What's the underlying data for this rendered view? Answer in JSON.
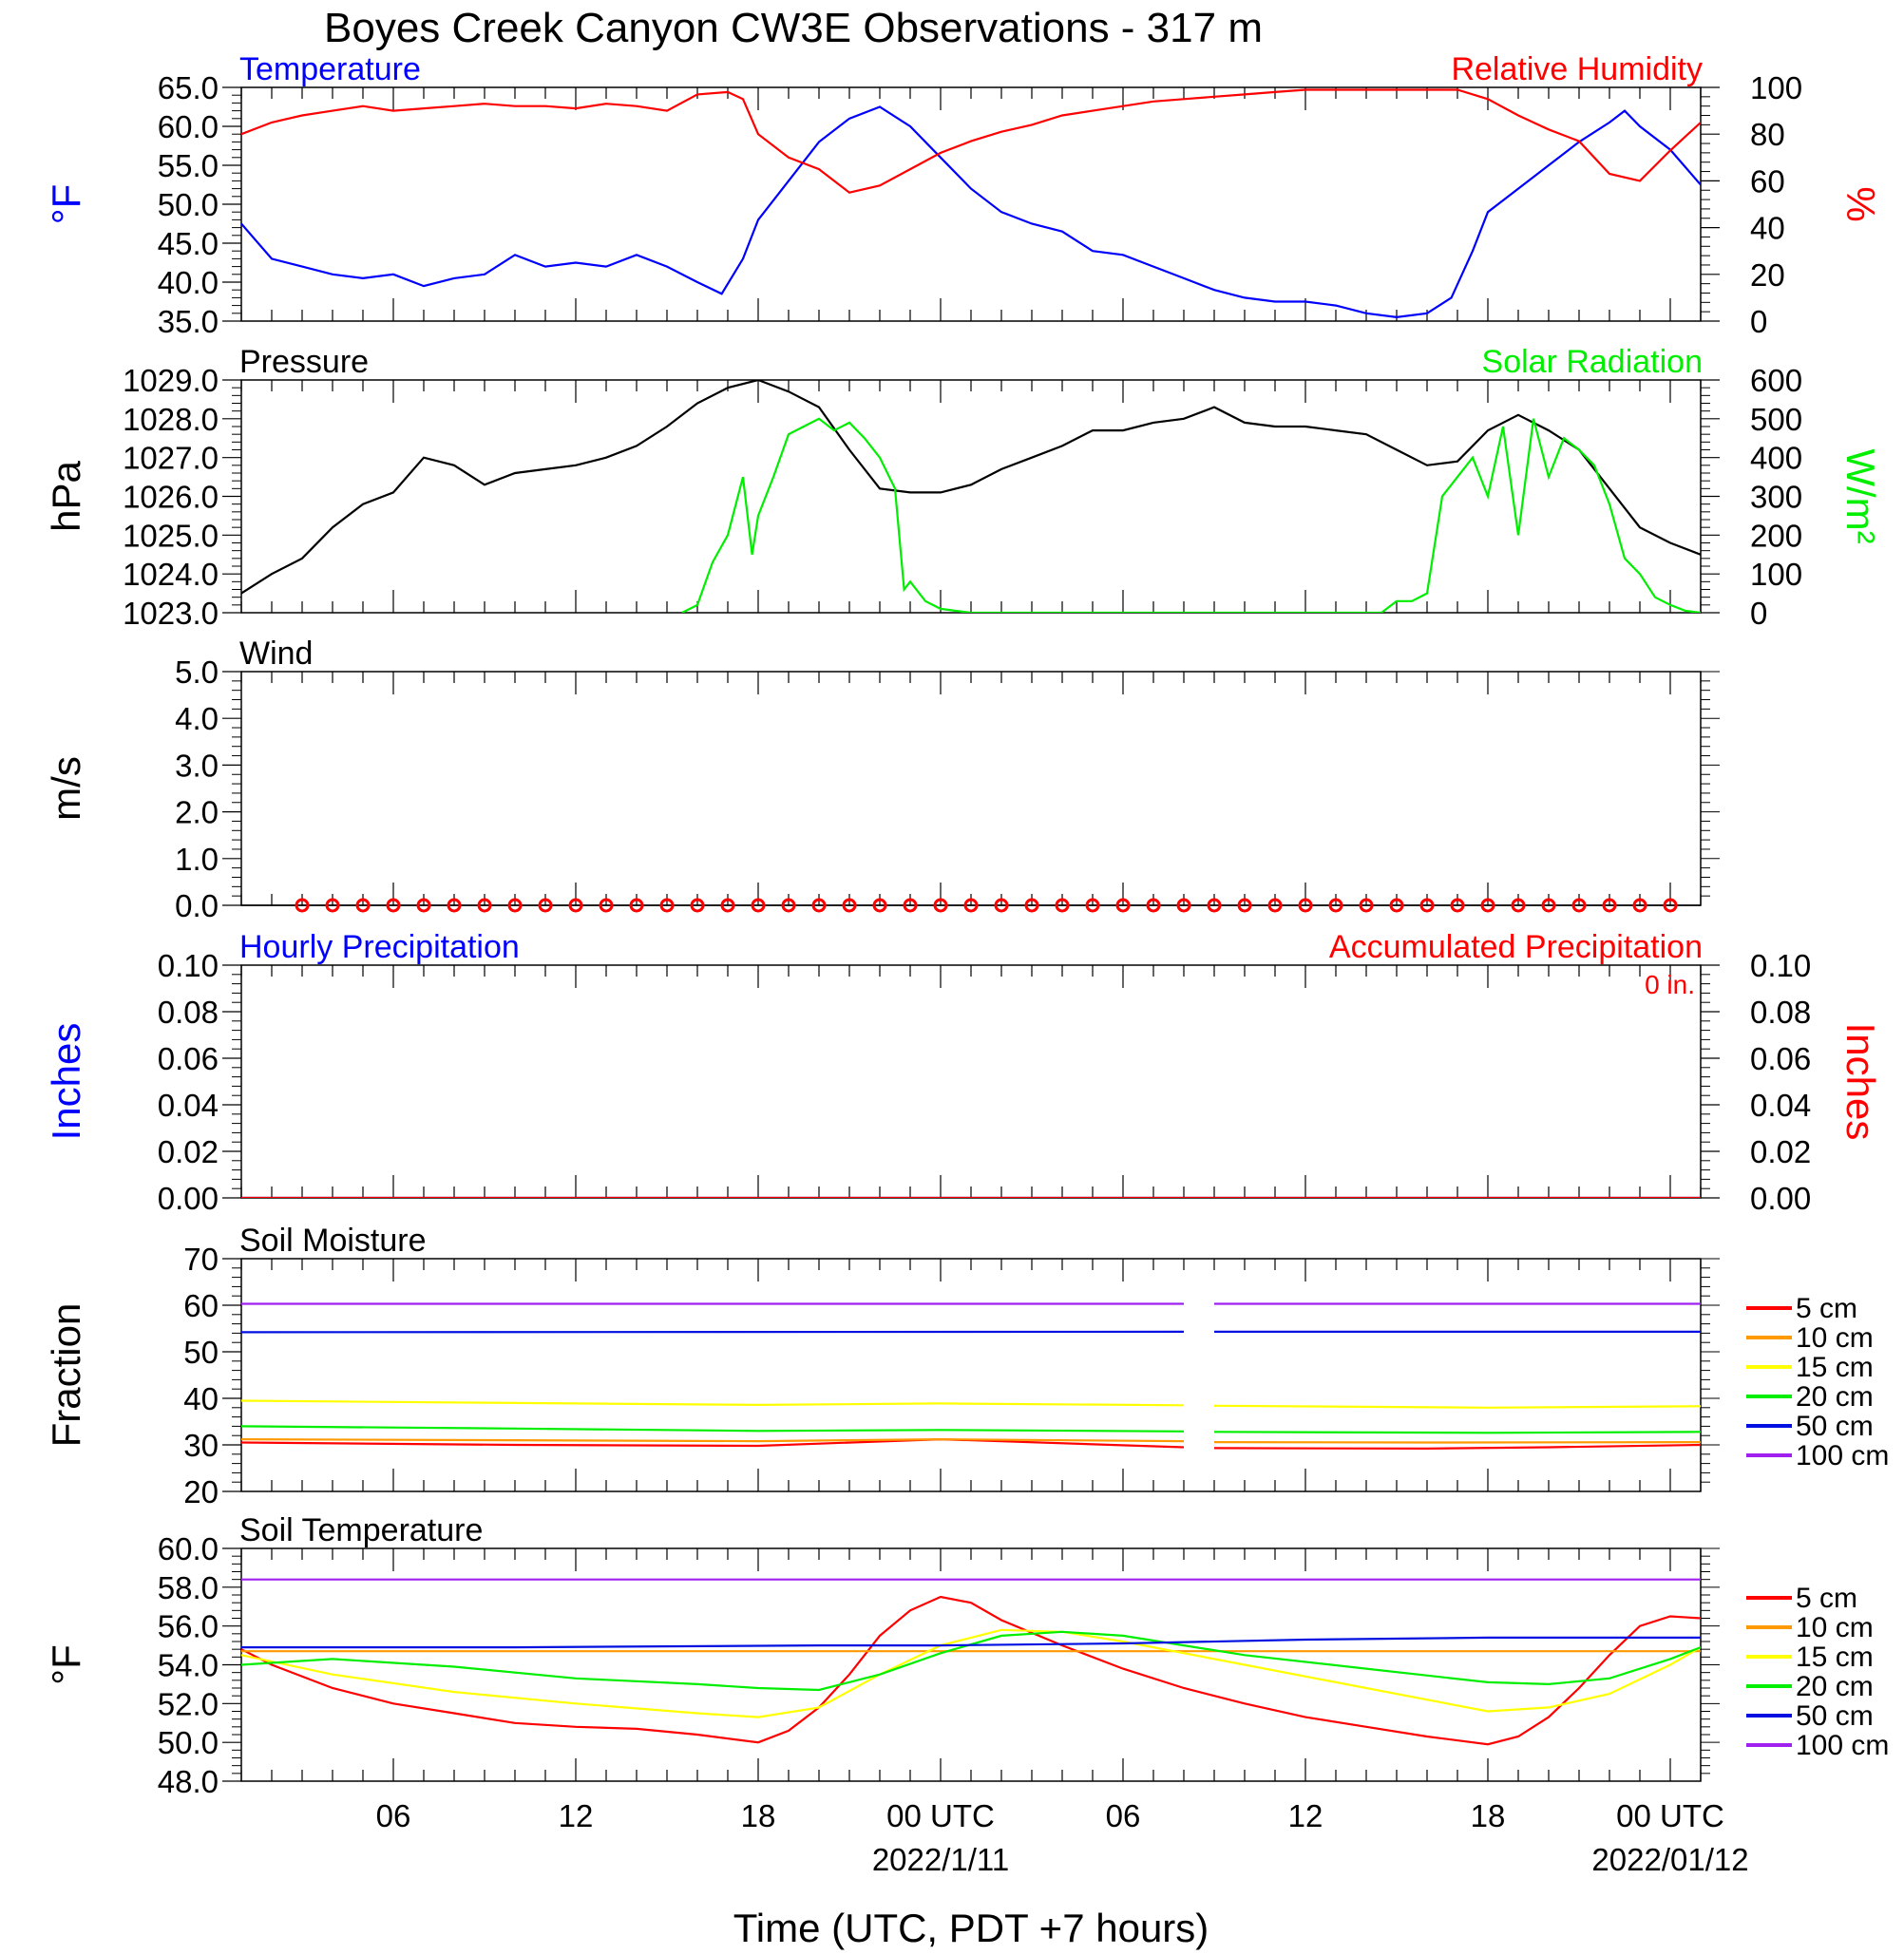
{
  "title": "Boyes Creek Canyon CW3E Observations - 317 m",
  "xaxis": {
    "label": "Time (UTC, PDT +7 hours)",
    "ticks": [
      {
        "hour": 6,
        "label": "06",
        "date": ""
      },
      {
        "hour": 12,
        "label": "12",
        "date": ""
      },
      {
        "hour": 18,
        "label": "18",
        "date": ""
      },
      {
        "hour": 24,
        "label": "00 UTC",
        "date": "2022/1/11"
      },
      {
        "hour": 30,
        "label": "06",
        "date": ""
      },
      {
        "hour": 36,
        "label": "12",
        "date": ""
      },
      {
        "hour": 42,
        "label": "18",
        "date": ""
      },
      {
        "hour": 48,
        "label": "00 UTC",
        "date": "2022/01/12"
      }
    ]
  },
  "colors": {
    "blue": "#0000ff",
    "red": "#ff0000",
    "green": "#00ee00",
    "black": "#000000",
    "orange": "#ff9900",
    "yellow": "#ffff00",
    "navy": "#0010e0",
    "purple": "#a020f0"
  },
  "panels": {
    "temp_rh": {
      "left_title": "Temperature",
      "right_title": "Relative Humidity",
      "left_ylabel": "°F",
      "right_ylabel": "%",
      "left_ticks": [
        "65.0",
        "60.0",
        "55.0",
        "50.0",
        "45.0",
        "40.0",
        "35.0"
      ],
      "right_ticks": [
        "100",
        "80",
        "60",
        "40",
        "20",
        "0"
      ]
    },
    "pressure_solar": {
      "left_title": "Pressure",
      "right_title": "Solar Radiation",
      "left_ylabel": "hPa",
      "right_ylabel": "W/m²",
      "left_ticks": [
        "1029.0",
        "1028.0",
        "1027.0",
        "1026.0",
        "1025.0",
        "1024.0",
        "1023.0"
      ],
      "right_ticks": [
        "600",
        "500",
        "400",
        "300",
        "200",
        "100",
        "0"
      ]
    },
    "wind": {
      "left_title": "Wind",
      "left_ylabel": "m/s",
      "left_ticks": [
        "5.0",
        "4.0",
        "3.0",
        "2.0",
        "1.0",
        "0.0"
      ]
    },
    "precip": {
      "left_title": "Hourly Precipitation",
      "right_title": "Accumulated Precipitation",
      "left_ylabel": "Inches",
      "right_ylabel": "Inches",
      "accum_label": "0 in.",
      "left_ticks": [
        "0.10",
        "0.08",
        "0.06",
        "0.04",
        "0.02",
        "0.00"
      ],
      "right_ticks": [
        "0.10",
        "0.08",
        "0.06",
        "0.04",
        "0.02",
        "0.00"
      ]
    },
    "soil_moisture": {
      "left_title": "Soil Moisture",
      "left_ylabel": "Fraction",
      "left_ticks": [
        "70",
        "60",
        "50",
        "40",
        "30",
        "20"
      ],
      "legend": [
        "5 cm",
        "10 cm",
        "15 cm",
        "20 cm",
        "50 cm",
        "100 cm"
      ]
    },
    "soil_temp": {
      "left_title": "Soil Temperature",
      "left_ylabel": "°F",
      "left_ticks": [
        "60.0",
        "58.0",
        "56.0",
        "54.0",
        "52.0",
        "50.0",
        "48.0"
      ],
      "legend": [
        "5 cm",
        "10 cm",
        "15 cm",
        "20 cm",
        "50 cm",
        "100 cm"
      ]
    }
  },
  "chart_data": [
    {
      "type": "line",
      "title": "Temperature / Relative Humidity",
      "xlim": [
        1,
        49
      ],
      "ylim": [
        35,
        65
      ],
      "y2lim": [
        0,
        100
      ],
      "series": [
        {
          "name": "Temperature",
          "axis": "left",
          "color": "#0000ff",
          "x": [
            1,
            2,
            3,
            4,
            5,
            6,
            7,
            8,
            9,
            10,
            11,
            12,
            13,
            14,
            15,
            16,
            16.8,
            17.5,
            18,
            19,
            20,
            21,
            22,
            23,
            24,
            25,
            26,
            27,
            28,
            29,
            30,
            31,
            32,
            33,
            34,
            35,
            36,
            37,
            38,
            39,
            40,
            40.8,
            41.5,
            42,
            43,
            44,
            45,
            46,
            46.5,
            47,
            48,
            49
          ],
          "y": [
            47.5,
            43,
            42,
            41,
            40.5,
            41,
            39.5,
            40.5,
            41,
            43.5,
            42,
            42.5,
            42,
            43.5,
            42,
            40,
            38.5,
            43,
            48,
            53,
            58,
            61,
            62.5,
            60,
            56,
            52,
            49,
            47.5,
            46.5,
            44,
            43.5,
            42,
            40.5,
            39,
            38,
            37.5,
            37.5,
            37,
            36,
            35.5,
            36,
            38,
            44,
            49,
            52,
            55,
            58,
            60.5,
            62,
            60,
            57,
            52.5
          ]
        },
        {
          "name": "Relative Humidity",
          "axis": "right",
          "color": "#ff0000",
          "x": [
            1,
            2,
            3,
            4,
            5,
            6,
            7,
            8,
            9,
            10,
            11,
            12,
            13,
            14,
            15,
            16,
            17,
            17.5,
            18,
            19,
            20,
            21,
            22,
            23,
            24,
            25,
            26,
            27,
            28,
            29,
            30,
            31,
            32,
            33,
            34,
            35,
            36,
            37,
            38,
            39,
            40,
            41,
            42,
            43,
            44,
            45,
            46,
            47,
            48,
            49
          ],
          "y": [
            80,
            85,
            88,
            90,
            92,
            90,
            91,
            92,
            93,
            92,
            92,
            91,
            93,
            92,
            90,
            97,
            98,
            95,
            80,
            70,
            65,
            55,
            58,
            65,
            72,
            77,
            81,
            84,
            88,
            90,
            92,
            94,
            95,
            96,
            97,
            98,
            99,
            99,
            99,
            99,
            99,
            99,
            95,
            88,
            82,
            77,
            63,
            60,
            73,
            85
          ]
        }
      ]
    },
    {
      "type": "line",
      "title": "Pressure / Solar Radiation",
      "xlim": [
        1,
        49
      ],
      "ylim": [
        1023,
        1029
      ],
      "y2lim": [
        0,
        600
      ],
      "series": [
        {
          "name": "Pressure",
          "axis": "left",
          "color": "#000000",
          "x": [
            1,
            2,
            3,
            4,
            5,
            6,
            7,
            8,
            9,
            10,
            11,
            12,
            13,
            14,
            15,
            16,
            17,
            18,
            19,
            20,
            21,
            22,
            23,
            24,
            25,
            26,
            27,
            28,
            29,
            30,
            31,
            32,
            33,
            34,
            35,
            36,
            37,
            38,
            39,
            40,
            41,
            42,
            43,
            44,
            45,
            46,
            47,
            48,
            49
          ],
          "y": [
            1023.5,
            1024,
            1024.4,
            1025.2,
            1025.8,
            1026.1,
            1027,
            1026.8,
            1026.3,
            1026.6,
            1026.7,
            1026.8,
            1027,
            1027.3,
            1027.8,
            1028.4,
            1028.8,
            1029,
            1028.7,
            1028.3,
            1027.2,
            1026.2,
            1026.1,
            1026.1,
            1026.3,
            1026.7,
            1027,
            1027.3,
            1027.7,
            1027.7,
            1027.9,
            1028,
            1028.3,
            1027.9,
            1027.8,
            1027.8,
            1027.7,
            1027.6,
            1027.2,
            1026.8,
            1026.9,
            1027.7,
            1028.1,
            1027.7,
            1027.2,
            1026.2,
            1025.2,
            1024.8,
            1024.5
          ]
        },
        {
          "name": "Solar Radiation",
          "axis": "right",
          "color": "#00ee00",
          "x": [
            15.5,
            16,
            16.5,
            17,
            17.5,
            17.8,
            18,
            18.5,
            19,
            19.5,
            20,
            20.5,
            21,
            21.5,
            22,
            22.5,
            22.8,
            23,
            23.5,
            24,
            24.5,
            25,
            25.5,
            38.5,
            39,
            39.5,
            40,
            40.5,
            41,
            41.5,
            42,
            42.5,
            43,
            43.5,
            44,
            44.5,
            45,
            45.5,
            46,
            46.5,
            47,
            47.5,
            48,
            48.5,
            49
          ],
          "y": [
            0,
            20,
            130,
            200,
            350,
            150,
            250,
            350,
            460,
            480,
            500,
            470,
            490,
            450,
            400,
            320,
            60,
            80,
            30,
            10,
            5,
            0,
            0,
            0,
            30,
            30,
            50,
            300,
            350,
            400,
            300,
            480,
            200,
            500,
            350,
            450,
            420,
            380,
            280,
            140,
            100,
            40,
            20,
            5,
            0
          ]
        }
      ]
    },
    {
      "type": "scatter",
      "title": "Wind",
      "xlim": [
        1,
        49
      ],
      "ylim": [
        0,
        5
      ],
      "series": [
        {
          "name": "Wind",
          "color": "#ff0000",
          "x": [
            3,
            4,
            5,
            6,
            7,
            8,
            9,
            10,
            11,
            12,
            13,
            14,
            15,
            16,
            17,
            18,
            19,
            20,
            21,
            22,
            23,
            24,
            25,
            26,
            27,
            28,
            29,
            30,
            31,
            32,
            33,
            34,
            35,
            36,
            37,
            38,
            39,
            40,
            41,
            42,
            43,
            44,
            45,
            46,
            47,
            48
          ],
          "y": [
            0,
            0,
            0,
            0,
            0,
            0,
            0,
            0,
            0,
            0,
            0,
            0,
            0,
            0,
            0,
            0,
            0,
            0,
            0,
            0,
            0,
            0,
            0,
            0,
            0,
            0,
            0,
            0,
            0,
            0,
            0,
            0,
            0,
            0,
            0,
            0,
            0,
            0,
            0,
            0,
            0,
            0,
            0,
            0,
            0,
            0
          ]
        }
      ]
    },
    {
      "type": "line",
      "title": "Precipitation",
      "xlim": [
        1,
        49
      ],
      "ylim": [
        0,
        0.1
      ],
      "y2lim": [
        0,
        0.1
      ],
      "series": [
        {
          "name": "Hourly Precipitation",
          "axis": "left",
          "color": "#0000ff",
          "x": [
            1,
            49
          ],
          "y": [
            0,
            0
          ]
        },
        {
          "name": "Accumulated Precipitation",
          "axis": "right",
          "color": "#ff0000",
          "x": [
            1,
            49
          ],
          "y": [
            0,
            0
          ]
        }
      ]
    },
    {
      "type": "line",
      "title": "Soil Moisture",
      "xlim": [
        1,
        49
      ],
      "ylim": [
        20,
        70
      ],
      "series": [
        {
          "name": "5 cm",
          "color": "#ff0000",
          "x": [
            1,
            10,
            18,
            24,
            32,
            33,
            40,
            44,
            49
          ],
          "y": [
            30.5,
            30,
            29.8,
            31.2,
            29.5,
            29.3,
            29.2,
            29.5,
            30
          ]
        },
        {
          "name": "10 cm",
          "color": "#ff9900",
          "x": [
            1,
            10,
            18,
            24,
            32,
            33,
            40,
            49
          ],
          "y": [
            31.2,
            31,
            30.8,
            31.2,
            30.8,
            30.6,
            30.5,
            30.6
          ]
        },
        {
          "name": "15 cm",
          "color": "#ffff00",
          "x": [
            1,
            10,
            18,
            24,
            32,
            33,
            42,
            49
          ],
          "y": [
            39.5,
            39,
            38.6,
            38.9,
            38.5,
            38.4,
            38,
            38.3
          ]
        },
        {
          "name": "20 cm",
          "color": "#00ee00",
          "x": [
            1,
            10,
            18,
            24,
            32,
            33,
            42,
            49
          ],
          "y": [
            34,
            33.5,
            33,
            33.2,
            32.9,
            32.8,
            32.6,
            32.8
          ]
        },
        {
          "name": "50 cm",
          "color": "#0010e0",
          "x": [
            1,
            32,
            33,
            49
          ],
          "y": [
            54.2,
            54.3,
            54.3,
            54.3
          ]
        },
        {
          "name": "100 cm",
          "color": "#a020f0",
          "x": [
            1,
            32,
            33,
            49
          ],
          "y": [
            60.3,
            60.3,
            60.3,
            60.3
          ]
        }
      ]
    },
    {
      "type": "line",
      "title": "Soil Temperature",
      "xlim": [
        1,
        49
      ],
      "ylim": [
        48,
        60
      ],
      "series": [
        {
          "name": "5 cm",
          "color": "#ff0000",
          "x": [
            1,
            2,
            4,
            6,
            8,
            10,
            12,
            14,
            16,
            18,
            19,
            20,
            21,
            22,
            23,
            24,
            25,
            26,
            28,
            30,
            32,
            34,
            36,
            38,
            40,
            42,
            43,
            44,
            45,
            46,
            47,
            48,
            49
          ],
          "y": [
            54.8,
            54,
            52.8,
            52,
            51.5,
            51,
            50.8,
            50.7,
            50.4,
            50,
            50.6,
            51.8,
            53.5,
            55.5,
            56.8,
            57.5,
            57.2,
            56.3,
            55,
            53.8,
            52.8,
            52,
            51.3,
            50.8,
            50.3,
            49.9,
            50.3,
            51.3,
            52.8,
            54.5,
            56,
            56.5,
            56.4
          ]
        },
        {
          "name": "10 cm",
          "color": "#ff9900",
          "x": [
            1,
            49
          ],
          "y": [
            54.7,
            54.7
          ]
        },
        {
          "name": "15 cm",
          "color": "#ffff00",
          "x": [
            1,
            4,
            8,
            12,
            16,
            18,
            20,
            22,
            24,
            26,
            28,
            30,
            34,
            38,
            42,
            44,
            46,
            48,
            49
          ],
          "y": [
            54.5,
            53.5,
            52.6,
            52,
            51.5,
            51.3,
            51.8,
            53.5,
            55,
            55.8,
            55.7,
            55.2,
            54,
            52.8,
            51.6,
            51.8,
            52.5,
            54,
            54.9
          ]
        },
        {
          "name": "20 cm",
          "color": "#00ee00",
          "x": [
            1,
            4,
            8,
            12,
            16,
            18,
            20,
            22,
            24,
            26,
            28,
            30,
            34,
            38,
            42,
            44,
            46,
            48,
            49
          ],
          "y": [
            54,
            54.3,
            53.9,
            53.3,
            53,
            52.8,
            52.7,
            53.5,
            54.6,
            55.5,
            55.7,
            55.5,
            54.5,
            53.8,
            53.1,
            53,
            53.3,
            54.3,
            54.9
          ]
        },
        {
          "name": "50 cm",
          "color": "#0010e0",
          "x": [
            1,
            10,
            20,
            24,
            30,
            36,
            42,
            49
          ],
          "y": [
            54.9,
            54.9,
            55,
            55,
            55.1,
            55.3,
            55.4,
            55.4
          ]
        },
        {
          "name": "100 cm",
          "color": "#a020f0",
          "x": [
            1,
            10,
            20,
            30,
            40,
            49
          ],
          "y": [
            58.4,
            58.4,
            58.4,
            58.4,
            58.4,
            58.4
          ]
        }
      ]
    }
  ]
}
